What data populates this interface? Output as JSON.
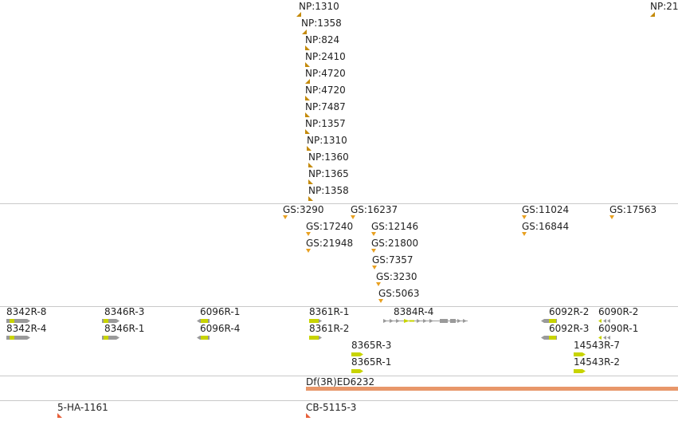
{
  "colors": {
    "np_marker": "#c48a0a",
    "gs_marker": "#e8a020",
    "transcript_gray": "#9a9a9a",
    "exon_green": "#c8d400",
    "deficiency_bar": "#e8976a",
    "insertion_red": "#e8603a",
    "separator": "#c9c9c9"
  },
  "tracks": {
    "np": [
      {
        "label": "NP:1310",
        "strand": "minus"
      },
      {
        "label": "NP:1358",
        "strand": "minus"
      },
      {
        "label": "NP:824",
        "strand": "plus"
      },
      {
        "label": "NP:2410",
        "strand": "plus"
      },
      {
        "label": "NP:4720",
        "strand": "minus"
      },
      {
        "label": "NP:4720",
        "strand": "plus"
      },
      {
        "label": "NP:7487",
        "strand": "plus"
      },
      {
        "label": "NP:1357",
        "strand": "plus"
      },
      {
        "label": "NP:1310",
        "strand": "plus"
      },
      {
        "label": "NP:1360",
        "strand": "plus"
      },
      {
        "label": "NP:1365",
        "strand": "plus"
      },
      {
        "label": "NP:1358",
        "strand": "plus"
      },
      {
        "label": "NP:21",
        "strand": "minus"
      }
    ],
    "gs": [
      {
        "label": "GS:3290"
      },
      {
        "label": "GS:16237"
      },
      {
        "label": "GS:17240"
      },
      {
        "label": "GS:12146"
      },
      {
        "label": "GS:21948"
      },
      {
        "label": "GS:21800"
      },
      {
        "label": "GS:7357"
      },
      {
        "label": "GS:3230"
      },
      {
        "label": "GS:5063"
      },
      {
        "label": "GS:11024"
      },
      {
        "label": "GS:16844"
      },
      {
        "label": "GS:17563"
      }
    ],
    "transcripts": [
      {
        "label": "8342R-8",
        "strand": "plus"
      },
      {
        "label": "8342R-4",
        "strand": "plus"
      },
      {
        "label": "8346R-3",
        "strand": "plus"
      },
      {
        "label": "8346R-1",
        "strand": "plus"
      },
      {
        "label": "6096R-1",
        "strand": "minus"
      },
      {
        "label": "6096R-4",
        "strand": "minus"
      },
      {
        "label": "8361R-1",
        "strand": "plus"
      },
      {
        "label": "8361R-2",
        "strand": "plus"
      },
      {
        "label": "8384R-4",
        "strand": "plus"
      },
      {
        "label": "8365R-3",
        "strand": "plus"
      },
      {
        "label": "8365R-1",
        "strand": "plus"
      },
      {
        "label": "6092R-2",
        "strand": "minus"
      },
      {
        "label": "6092R-3",
        "strand": "minus"
      },
      {
        "label": "6090R-2",
        "strand": "minus"
      },
      {
        "label": "6090R-1",
        "strand": "minus"
      },
      {
        "label": "14543R-7",
        "strand": "plus"
      },
      {
        "label": "14543R-2",
        "strand": "plus"
      }
    ],
    "deficiency": [
      {
        "label": "Df(3R)ED6232"
      }
    ],
    "insertions": [
      {
        "label": "5-HA-1161"
      },
      {
        "label": "CB-5115-3"
      }
    ]
  }
}
